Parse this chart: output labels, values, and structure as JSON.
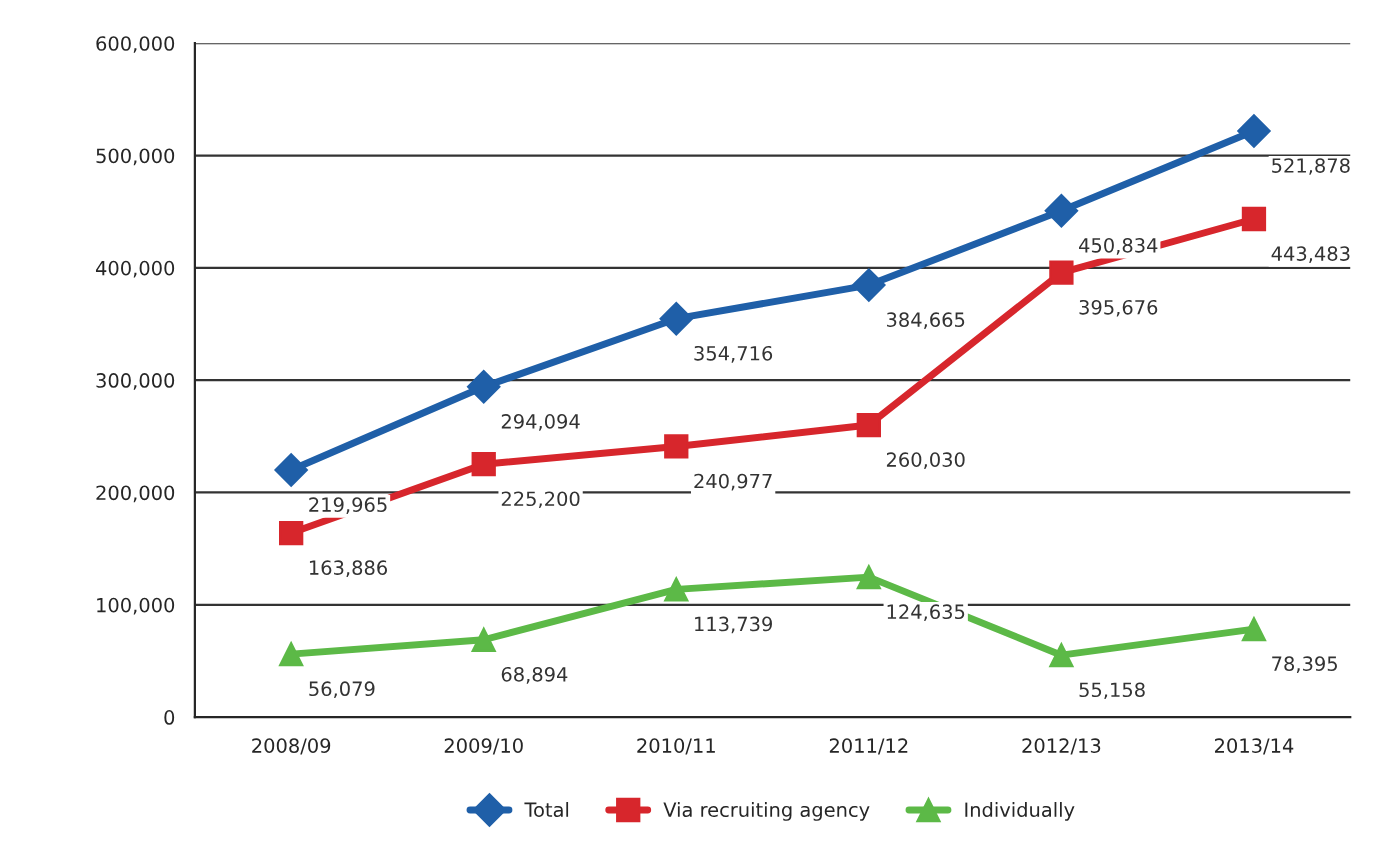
{
  "chart_data": {
    "type": "line",
    "categories": [
      "2008/09",
      "2009/10",
      "2010/11",
      "2011/12",
      "2012/13",
      "2013/14"
    ],
    "series": [
      {
        "name": "Total",
        "color": "#1f5fa8",
        "marker": "diamond",
        "values": [
          219965,
          294094,
          354716,
          384665,
          450834,
          521878
        ],
        "value_labels": [
          "219,965",
          "294,094",
          "354,716",
          "384,665",
          "450,834",
          "521,878"
        ]
      },
      {
        "name": "Via recruiting agency",
        "color": "#d7262c",
        "marker": "square",
        "values": [
          163886,
          225200,
          240977,
          260030,
          395676,
          443483
        ],
        "value_labels": [
          "163,886",
          "225,200",
          "240,977",
          "260,030",
          "395,676",
          "443,483"
        ]
      },
      {
        "name": "Individually",
        "color": "#5cb947",
        "marker": "triangle",
        "values": [
          56079,
          68894,
          113739,
          124635,
          55158,
          78395
        ],
        "value_labels": [
          "56,079",
          "68,894",
          "113,739",
          "124,635",
          "55,158",
          "78,395"
        ]
      }
    ],
    "ylim": [
      0,
      600000
    ],
    "yticks": [
      0,
      {
        "value": 100000,
        "label": "100,000"
      },
      {
        "value": 200000,
        "label": "200,000"
      },
      {
        "value": 300000,
        "label": "300,000"
      },
      {
        "value": 400000,
        "label": "400,000"
      },
      {
        "value": 500000,
        "label": "500,000"
      },
      {
        "value": 600000,
        "label": "600,000"
      }
    ],
    "grid": "y",
    "legend": "bottom",
    "line_style": "solid"
  }
}
